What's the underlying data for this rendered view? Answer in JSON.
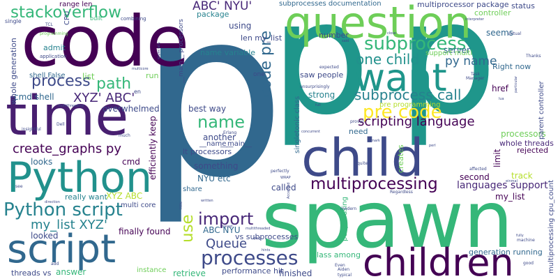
{
  "words": [
    {
      "text": "p",
      "color": "#31688e"
    },
    {
      "text": "p",
      "color": "#1f968b"
    },
    {
      "text": "p",
      "color": "#1f968b"
    },
    {
      "text": "spawn",
      "color": "#35b779"
    },
    {
      "text": "code",
      "color": "#440154"
    },
    {
      "text": "time",
      "color": "#481f70"
    },
    {
      "text": "question",
      "color": "#6ece58"
    },
    {
      "text": "child",
      "color": "#3e4a89"
    },
    {
      "text": "want",
      "color": "#1f968b"
    },
    {
      "text": "children",
      "color": "#440154"
    },
    {
      "text": "script",
      "color": "#31688e"
    },
    {
      "text": "Python",
      "color": "#21918c"
    },
    {
      "text": "Python script",
      "color": "#26828e"
    },
    {
      "text": "pre code",
      "color": "#fde725"
    },
    {
      "text": "subprocess",
      "color": "#35b779"
    },
    {
      "text": "processes",
      "color": "#3e4a89"
    },
    {
      "text": "multiprocessing",
      "color": "#440154"
    },
    {
      "text": "stackoverflow",
      "color": "#35b779"
    },
    {
      "text": "process",
      "color": "#3e4a89"
    },
    {
      "text": "path",
      "color": "#35b779"
    },
    {
      "text": "name",
      "color": "#35b779"
    },
    {
      "text": "import",
      "color": "#482878"
    },
    {
      "text": "one child",
      "color": "#21918c"
    },
    {
      "text": "py name",
      "color": "#31688e"
    },
    {
      "text": "subprocess call",
      "color": "#26828e"
    },
    {
      "text": "scripting language",
      "color": "#440154"
    },
    {
      "text": "create_graphs py",
      "color": "#440154"
    },
    {
      "text": "XYZ' ABC'",
      "color": "#482878"
    },
    {
      "text": "ABC' NYU'",
      "color": "#482878"
    },
    {
      "text": "code pre",
      "color": "#31688e"
    },
    {
      "text": "Queue",
      "color": "#3e4a89"
    },
    {
      "text": "use",
      "color": "#b5de2b"
    },
    {
      "text": "my_list XYZ'",
      "color": "#26828e"
    },
    {
      "text": "languages support",
      "color": "#482878"
    },
    {
      "text": "multiprocessor package",
      "color": "#3e4a89"
    },
    {
      "text": "subprocesses documentation",
      "color": "#31688e"
    },
    {
      "text": "range len",
      "color": "#440154"
    },
    {
      "text": "CPU",
      "color": "#3e4a89"
    },
    {
      "text": "built",
      "color": "#35b779"
    },
    {
      "text": "combining",
      "color": "#3e4a89"
    },
    {
      "text": "status",
      "color": "#3e4a89"
    },
    {
      "text": "controller",
      "color": "#6ece58"
    },
    {
      "text": "package",
      "color": "#26828e"
    },
    {
      "text": "using",
      "color": "#3e4a89"
    },
    {
      "text": "len my_list",
      "color": "#3e4a89"
    },
    {
      "text": "name variable",
      "color": "#26828e"
    },
    {
      "text": "admit",
      "color": "#26828e"
    },
    {
      "text": "number",
      "color": "#3e4a89"
    },
    {
      "text": "server",
      "color": "#31688e"
    },
    {
      "text": "seems",
      "color": "#31688e"
    },
    {
      "text": "support multi",
      "color": "#6ece58"
    },
    {
      "text": "Right now",
      "color": "#31688e"
    },
    {
      "text": "href",
      "color": "#440154"
    },
    {
      "text": "list",
      "color": "#6ece58"
    },
    {
      "text": "shell False",
      "color": "#31688e"
    },
    {
      "text": "cmd shell",
      "color": "#31688e"
    },
    {
      "text": "overwhelmed",
      "color": "#3e4a89"
    },
    {
      "text": "best way",
      "color": "#3e4a89"
    },
    {
      "text": "another",
      "color": "#3e4a89"
    },
    {
      "text": "__name__",
      "color": "#3e4a89"
    },
    {
      "text": "__main__",
      "color": "#3e4a89"
    },
    {
      "text": "efficiently keep",
      "color": "#440154"
    },
    {
      "text": "strong",
      "color": "#26828e"
    },
    {
      "text": "saw people",
      "color": "#3e4a89"
    },
    {
      "text": "need",
      "color": "#31688e"
    },
    {
      "text": "processors",
      "color": "#6ece58"
    },
    {
      "text": "whole threads",
      "color": "#482878"
    },
    {
      "text": "rejected",
      "color": "#440154"
    },
    {
      "text": "track",
      "color": "#b5de2b"
    },
    {
      "text": "second",
      "color": "#440154"
    },
    {
      "text": "limit",
      "color": "#440154"
    },
    {
      "text": "my_list",
      "color": "#440154"
    },
    {
      "text": "parent controller",
      "color": "#3e4a89"
    },
    {
      "text": "whole generation",
      "color": "#3e4a89"
    },
    {
      "text": "looks",
      "color": "#31688e"
    },
    {
      "text": "cmd",
      "color": "#440154"
    },
    {
      "text": "XYZ ABC",
      "color": "#b5de2b"
    },
    {
      "text": "really want",
      "color": "#26828e"
    },
    {
      "text": "looked",
      "color": "#3e4a89"
    },
    {
      "text": "multi core",
      "color": "#3e4a89"
    },
    {
      "text": "finally found",
      "color": "#440154"
    },
    {
      "text": "answer",
      "color": "#35b779"
    },
    {
      "text": "instance",
      "color": "#6ece58"
    },
    {
      "text": "retrieve",
      "color": "#35b779"
    },
    {
      "text": "performance hit",
      "color": "#3e4a89"
    },
    {
      "text": "threads vs",
      "color": "#3e4a89"
    },
    {
      "text": "something",
      "color": "#3e4a89"
    },
    {
      "text": "NYU etc",
      "color": "#31688e"
    },
    {
      "text": "lt processors",
      "color": "#3e4a89"
    },
    {
      "text": "ABC NYU",
      "color": "#31688e"
    },
    {
      "text": "vs subprocesses",
      "color": "#3e4a89"
    },
    {
      "text": "finished",
      "color": "#3e4a89"
    },
    {
      "text": "called",
      "color": "#3e4a89"
    },
    {
      "text": "class among",
      "color": "#35b779"
    },
    {
      "text": "generation running",
      "color": "#31688e"
    },
    {
      "text": "multiprocessing cpu_count",
      "color": "#3e4a89"
    },
    {
      "text": "creates",
      "color": "#6ece58"
    },
    {
      "text": "singletonic class",
      "color": "#31688e"
    },
    {
      "text": "people using",
      "color": "#35b779"
    },
    {
      "text": "pre programming",
      "color": "#b5de2b"
    },
    {
      "text": "run",
      "color": "#6ece58"
    },
    {
      "text": "one",
      "color": "#3e4a89"
    },
    {
      "text": "share",
      "color": "#31688e"
    },
    {
      "text": "en",
      "color": "#3e4a89"
    },
    {
      "text": "__main__ processors",
      "color": "#3e4a89"
    },
    {
      "text": "single",
      "color": "#3e4a89"
    },
    {
      "text": "application",
      "color": "#3e4a89"
    },
    {
      "text": "programming",
      "color": "#6ece58"
    },
    {
      "text": "multicore",
      "color": "#3e4a89"
    },
    {
      "text": "TCL",
      "color": "#3e4a89"
    },
    {
      "text": "expected",
      "color": "#3e4a89"
    },
    {
      "text": "unsurprisingly",
      "color": "#3e4a89"
    },
    {
      "text": "Manager",
      "color": "#3e4a89"
    },
    {
      "text": "Task",
      "color": "#3e4a89"
    },
    {
      "text": "Thanks",
      "color": "#3e4a89"
    },
    {
      "text": "virtual",
      "color": "#3e4a89"
    },
    {
      "text": "Dell",
      "color": "#3e4a89"
    },
    {
      "text": "much",
      "color": "#3e4a89"
    },
    {
      "text": "insightful",
      "color": "#3e4a89"
    },
    {
      "text": "direction",
      "color": "#3e4a89"
    },
    {
      "text": "add",
      "color": "#3e4a89"
    },
    {
      "text": "see",
      "color": "#3e4a89"
    },
    {
      "text": "Erlang",
      "color": "#3e4a89"
    },
    {
      "text": "quite",
      "color": "#3e4a89"
    },
    {
      "text": "perfectly",
      "color": "#3e4a89"
    },
    {
      "text": "machine",
      "color": "#3e4a89"
    },
    {
      "text": "good",
      "color": "#3e4a89"
    },
    {
      "text": "Aiden",
      "color": "#3e4a89"
    },
    {
      "text": "typical",
      "color": "#3e4a89"
    },
    {
      "text": "modern",
      "color": "#3e4a89"
    },
    {
      "text": "Even",
      "color": "#3e4a89"
    },
    {
      "text": "affected",
      "color": "#3e4a89"
    },
    {
      "text": "Regardless",
      "color": "#3e4a89"
    },
    {
      "text": "proven",
      "color": "#3e4a89"
    },
    {
      "text": "based",
      "color": "#3e4a89"
    },
    {
      "text": "multithreaded",
      "color": "#3e4a89"
    },
    {
      "text": "png",
      "color": "#3e4a89"
    },
    {
      "text": "hints",
      "color": "#3e4a89"
    },
    {
      "text": "remark",
      "color": "#3e4a89"
    },
    {
      "text": "perl",
      "color": "#3e4a89"
    },
    {
      "text": "lua",
      "color": "#3e4a89"
    },
    {
      "text": "particular",
      "color": "#3e4a89"
    },
    {
      "text": "interpreter",
      "color": "#3e4a89"
    },
    {
      "text": "close",
      "color": "#3e4a89"
    },
    {
      "text": "said",
      "color": "#3e4a89"
    },
    {
      "text": "concurrent",
      "color": "#3e4a89"
    },
    {
      "text": "full",
      "color": "#3e4a89"
    },
    {
      "text": "multithreading",
      "color": "#3e4a89"
    },
    {
      "text": "especially",
      "color": "#3e4a89"
    },
    {
      "text": "written",
      "color": "#3e4a89"
    },
    {
      "text": "little",
      "color": "#3e4a89"
    },
    {
      "text": "WRAP",
      "color": "#3e4a89"
    },
    {
      "text": "einmal",
      "color": "#3e4a89"
    },
    {
      "text": "fully",
      "color": "#3e4a89"
    },
    {
      "text": "Accepted",
      "color": "#3e4a89"
    }
  ]
}
